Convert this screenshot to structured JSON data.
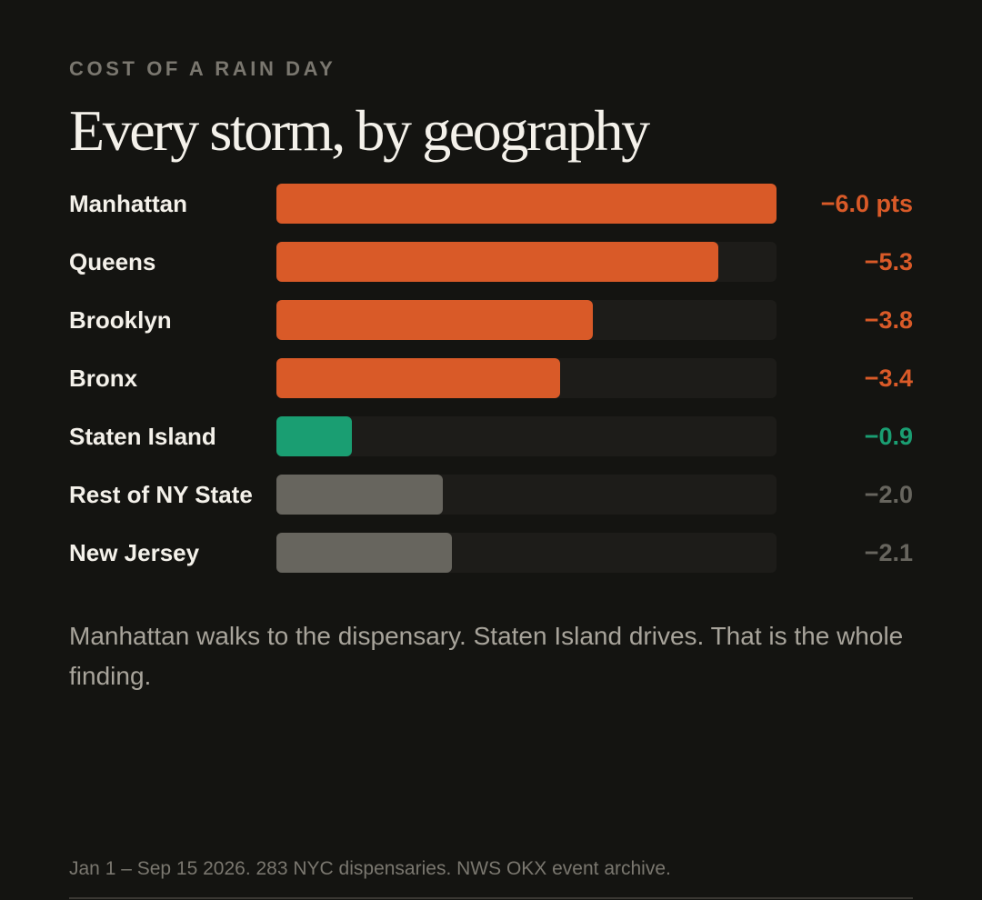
{
  "eyebrow": "COST OF A RAIN DAY",
  "title": "Every storm, by geography",
  "caption": "Manhattan walks to the dispensary. Staten Island drives. That is the whole finding.",
  "source": "Jan 1 – Sep 15 2026. 283 NYC dispensaries. NWS OKX event archive.",
  "colors": {
    "background": "#141411",
    "negative": "#d95a28",
    "positive": "#1a9e72",
    "neutral": "#67655e",
    "track": "#1d1c19"
  },
  "chart_data": {
    "type": "bar",
    "orientation": "horizontal",
    "title": "Every storm, by geography",
    "max_value": 6.0,
    "categories": [
      "Manhattan",
      "Queens",
      "Brooklyn",
      "Bronx",
      "Staten Island",
      "Rest of NY State",
      "New Jersey"
    ],
    "values": [
      -6.0,
      -5.3,
      -3.8,
      -3.4,
      -0.9,
      -2.0,
      -2.1
    ],
    "value_labels": [
      "−6.0 pts",
      "−5.3",
      "−3.8",
      "−3.4",
      "−0.9",
      "−2.0",
      "−2.1"
    ],
    "bar_colors": [
      "negative",
      "negative",
      "negative",
      "negative",
      "positive",
      "neutral",
      "neutral"
    ]
  }
}
